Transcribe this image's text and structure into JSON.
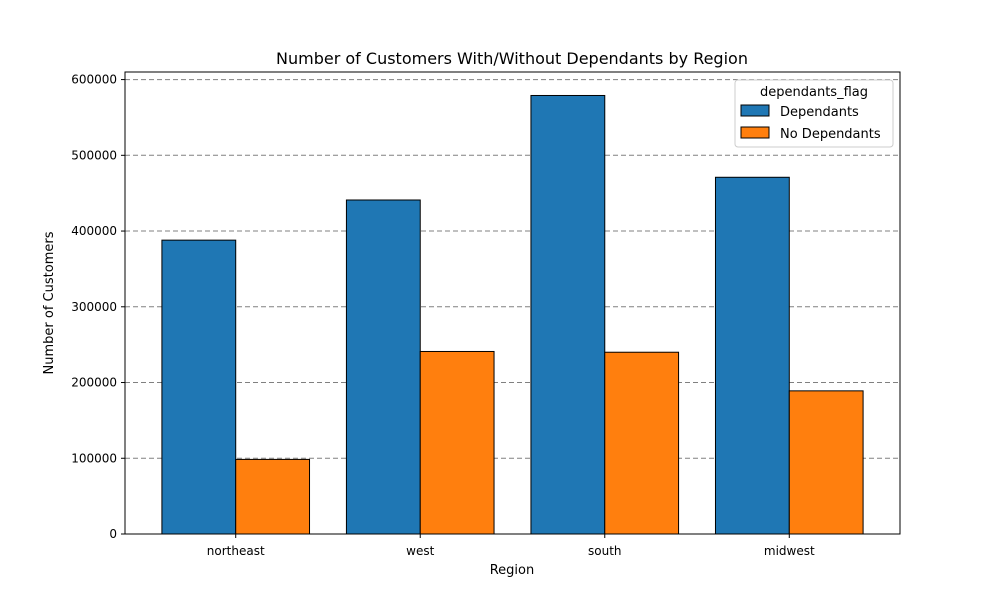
{
  "chart_data": {
    "type": "bar",
    "title": "Number of Customers With/Without Dependants by Region",
    "xlabel": "Region",
    "ylabel": "Number of Customers",
    "categories": [
      "northeast",
      "west",
      "south",
      "midwest"
    ],
    "series": [
      {
        "name": "Dependants",
        "color": "#1f77b4",
        "values": [
          388000,
          441000,
          579000,
          471000
        ]
      },
      {
        "name": "No Dependants",
        "color": "#ff7f0e",
        "values": [
          98500,
          241000,
          240000,
          189000
        ]
      }
    ],
    "ylim": [
      0,
      610000
    ],
    "yticks": [
      0,
      100000,
      200000,
      300000,
      400000,
      500000,
      600000
    ],
    "ytick_labels": [
      "0",
      "100000",
      "200000",
      "300000",
      "400000",
      "500000",
      "600000"
    ],
    "grid": "y-dashed",
    "legend": {
      "title": "dependants_flag",
      "placement": "top-right"
    }
  }
}
